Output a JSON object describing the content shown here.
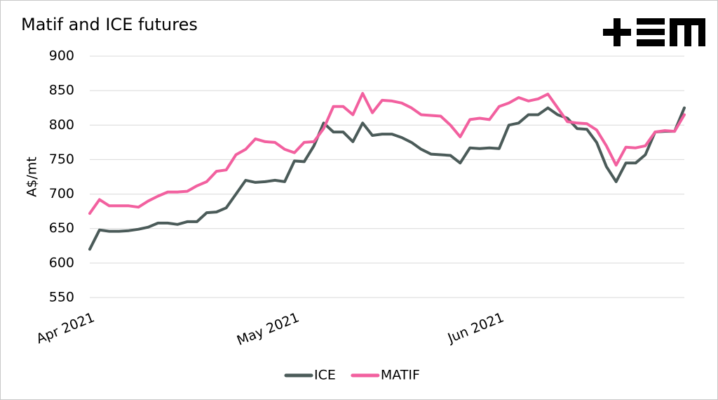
{
  "chart_data": {
    "type": "line",
    "title": "Matif and ICE futures",
    "y_label": "A$/mt",
    "categories": [
      "Apr 2021",
      null,
      null,
      null,
      null,
      null,
      null,
      null,
      null,
      null,
      null,
      null,
      null,
      null,
      null,
      null,
      null,
      null,
      null,
      null,
      null,
      "May 2021",
      null,
      null,
      null,
      null,
      null,
      null,
      null,
      null,
      null,
      null,
      null,
      null,
      null,
      null,
      null,
      null,
      null,
      null,
      null,
      null,
      "Jun 2021",
      null,
      null,
      null,
      null,
      null,
      null,
      null,
      null,
      null,
      null,
      null,
      null,
      null,
      null,
      null,
      null,
      null,
      null,
      null
    ],
    "series": [
      {
        "name": "ICE",
        "color": "#4b5b59",
        "values": [
          620,
          648,
          646,
          646,
          647,
          649,
          652,
          658,
          658,
          656,
          660,
          660,
          673,
          674,
          680,
          700,
          720,
          717,
          718,
          720,
          718,
          748,
          747,
          770,
          803,
          790,
          790,
          776,
          803,
          785,
          787,
          787,
          782,
          775,
          765,
          758,
          757,
          756,
          745,
          767,
          766,
          767,
          766,
          800,
          803,
          815,
          815,
          825,
          815,
          810,
          795,
          794,
          775,
          740,
          718,
          745,
          745,
          757,
          790,
          791,
          791,
          825
        ]
      },
      {
        "name": "MATIF",
        "color": "#f2609f",
        "values": [
          672,
          692,
          683,
          683,
          683,
          681,
          690,
          697,
          703,
          703,
          704,
          712,
          718,
          733,
          735,
          757,
          765,
          780,
          776,
          775,
          765,
          760,
          775,
          776,
          795,
          827,
          827,
          815,
          846,
          818,
          836,
          835,
          832,
          825,
          815,
          814,
          813,
          800,
          783,
          808,
          810,
          808,
          827,
          832,
          840,
          835,
          838,
          845,
          825,
          805,
          803,
          802,
          793,
          770,
          742,
          768,
          767,
          770,
          790,
          792,
          791,
          815
        ]
      }
    ],
    "ylim": [
      550,
      900
    ],
    "yticks": [
      550,
      600,
      650,
      700,
      750,
      800,
      850,
      900
    ],
    "grid": true
  }
}
